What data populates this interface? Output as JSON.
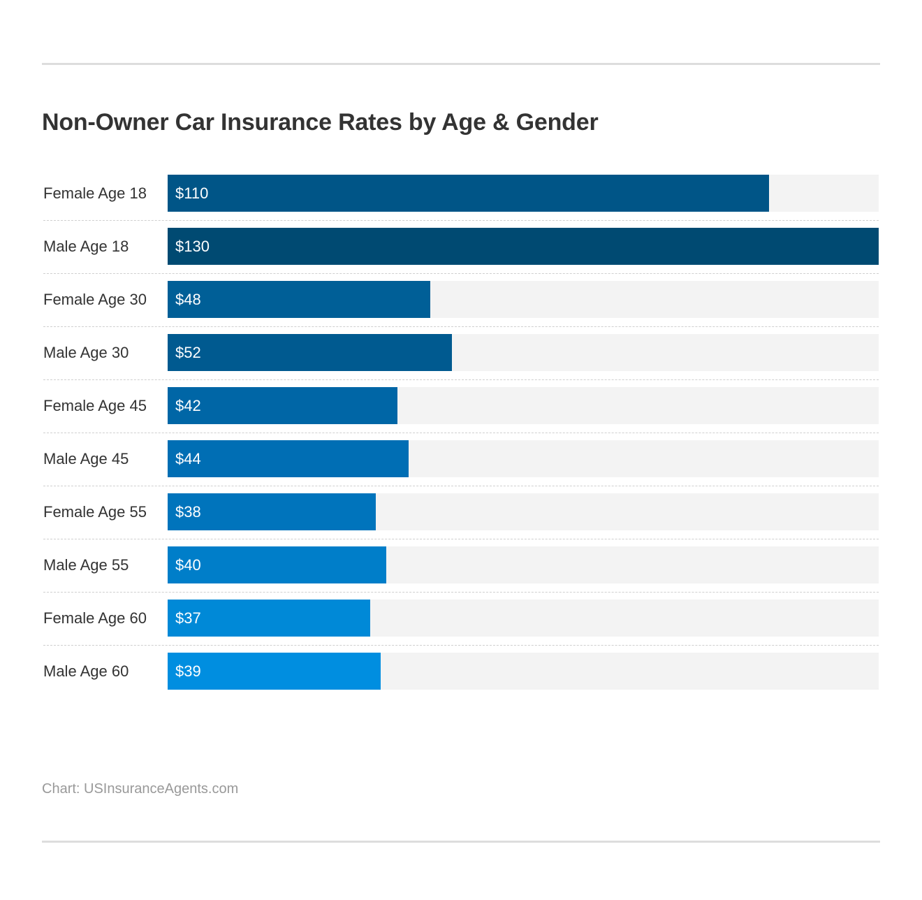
{
  "chart_data": {
    "type": "bar",
    "orientation": "horizontal",
    "title": "Non-Owner Car Insurance Rates by Age & Gender",
    "categories": [
      "Female Age 18",
      "Male Age 18",
      "Female Age 30",
      "Male Age 30",
      "Female Age 45",
      "Male Age 45",
      "Female Age 55",
      "Male Age 55",
      "Female Age 60",
      "Male Age 60"
    ],
    "values": [
      110,
      130,
      48,
      52,
      42,
      44,
      38,
      40,
      37,
      39
    ],
    "value_labels": [
      "$110",
      "$130",
      "$48",
      "$52",
      "$42",
      "$44",
      "$38",
      "$40",
      "$37",
      "$39"
    ],
    "bar_colors": [
      "#005587",
      "#004a72",
      "#005f97",
      "#005a90",
      "#0066a6",
      "#006eb4",
      "#0074bc",
      "#007ec9",
      "#0089d7",
      "#008ee0"
    ],
    "xlim": [
      0,
      130
    ],
    "grid": false,
    "legend": "none"
  },
  "source": "Chart: USInsuranceAgents.com"
}
